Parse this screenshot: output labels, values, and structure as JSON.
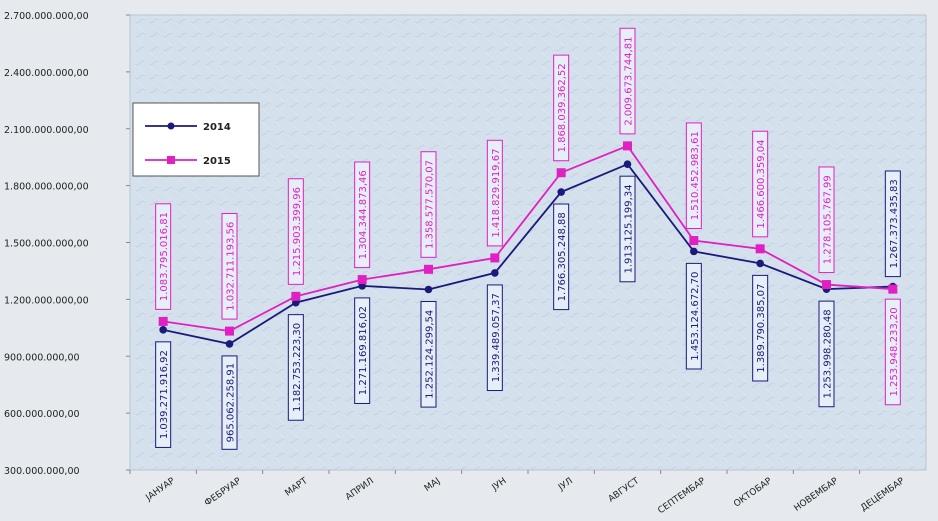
{
  "chart_data": {
    "type": "line",
    "title": "",
    "xlabel": "",
    "ylabel": "",
    "categories": [
      "ЈАНУАР",
      "ФЕБРУАР",
      "МАРТ",
      "АПРИЛ",
      "МАЈ",
      "ЈУН",
      "ЈУЛ",
      "АВГУСТ",
      "СЕПТЕМБАР",
      "ОКТОБАР",
      "НОВЕМБАР",
      "ДЕЦЕМБАР"
    ],
    "ylim": [
      300000000,
      2700000000
    ],
    "yticks": [
      300000000,
      600000000,
      900000000,
      1200000000,
      1500000000,
      1800000000,
      2100000000,
      2400000000,
      2700000000
    ],
    "ytick_labels": [
      "300.000.000,00",
      "600.000.000,00",
      "900.000.000,00",
      "1.200.000.000,00",
      "1.500.000.000,00",
      "1.800.000.000,00",
      "2.100.000.000,00",
      "2.400.000.000,00",
      "2.700.000.000,00"
    ],
    "grid": false,
    "legend_position": "left",
    "series": [
      {
        "name": "2014",
        "color": "#1a1a7a",
        "marker": "diamond",
        "values": [
          1039271916.92,
          965062258.91,
          1182753223.3,
          1271169816.02,
          1252124299.54,
          1339489057.37,
          1766305248.88,
          1913125199.34,
          1453124672.7,
          1389790385.07,
          1253998280.48,
          1267373435.83
        ],
        "labels": [
          "1.039.271.916,92",
          "965.062.258,91",
          "1.182.753.223,30",
          "1.271.169.816,02",
          "1.252.124.299,54",
          "1.339.489.057,37",
          "1.766.305.248,88",
          "1.913.125.199,34",
          "1.453.124.672,70",
          "1.389.790.385,07",
          "1.253.998.280,48",
          "1.267.373.435,83"
        ]
      },
      {
        "name": "2015",
        "color": "#e020c0",
        "marker": "square",
        "values": [
          1083795016.81,
          1032711193.56,
          1215903399.96,
          1304344873.46,
          1358577570.07,
          1418829919.67,
          1868039362.52,
          2009673744.81,
          1510452983.61,
          1466600359.04,
          1278105767.99,
          1253948233.2
        ],
        "labels": [
          "1.083.795.016,81",
          "1.032.711.193,56",
          "1.215.903.399,96",
          "1.304.344.873,46",
          "1.358.577.570,07",
          "1.418.829.919,67",
          "1.868.039.362,52",
          "2.009.673.744,81",
          "1.510.452.983,61",
          "1.466.600.359,04",
          "1.278.105.767,99",
          "1.253.948.233,20"
        ]
      }
    ]
  }
}
